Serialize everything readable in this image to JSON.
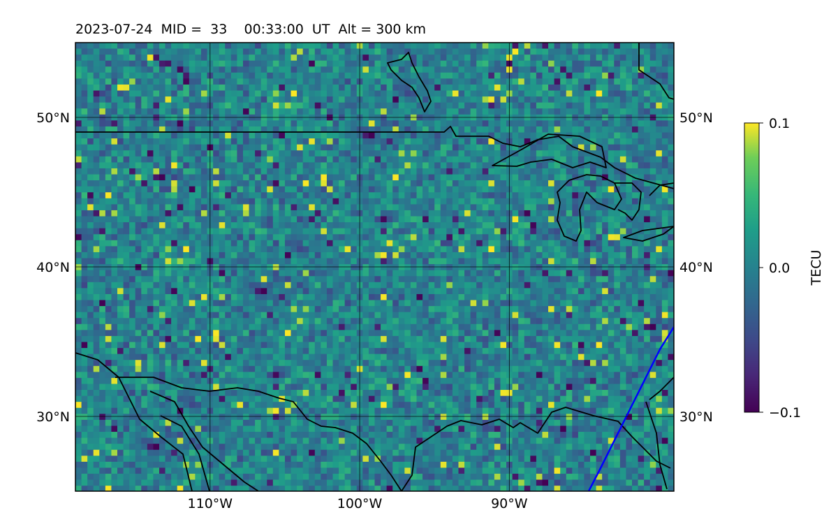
{
  "title": "2023-07-24  MID =  33    00:33:00  UT  Alt = 300 km",
  "map": {
    "lon_range": [
      -119,
      -79
    ],
    "lat_range": [
      25,
      55
    ],
    "lon_ticks": [
      {
        "value": -110,
        "label": "110°W"
      },
      {
        "value": -100,
        "label": "100°W"
      },
      {
        "value": -90,
        "label": "90°W"
      }
    ],
    "lat_ticks": [
      {
        "value": 30,
        "label": "30°N"
      },
      {
        "value": 40,
        "label": "40°N"
      },
      {
        "value": 50,
        "label": "50°N"
      }
    ],
    "grid": true,
    "field": "gridded TEC anomaly (noisy, mostly near 0.0)",
    "overlay_line_color": "#0000ff"
  },
  "colorbar": {
    "label": "TECU",
    "min": -0.1,
    "max": 0.1,
    "ticks": [
      {
        "value": 0.1,
        "label": "0.1"
      },
      {
        "value": 0.0,
        "label": "0.0"
      },
      {
        "value": -0.1,
        "label": "−0.1"
      }
    ],
    "colormap": "viridis"
  },
  "colors": {
    "cmap_low": "#440154",
    "cmap_mid": "#21918c",
    "cmap_high": "#fde725",
    "coast": "#000000",
    "overlay": "#0000ff"
  }
}
